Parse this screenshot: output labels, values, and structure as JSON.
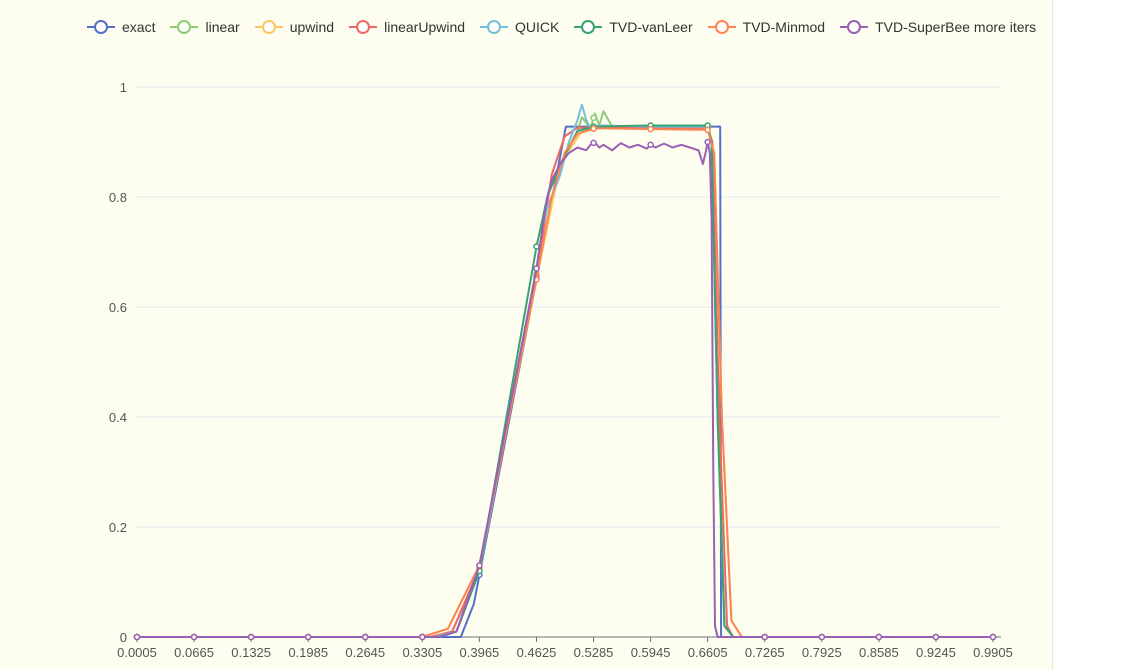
{
  "chart_data": {
    "type": "line",
    "title": "",
    "xlabel": "",
    "ylabel": "",
    "xlim": [
      0.0005,
      0.9905
    ],
    "ylim": [
      0,
      1
    ],
    "x_ticks": [
      "0.0005",
      "0.0665",
      "0.1325",
      "0.1985",
      "0.2645",
      "0.3305",
      "0.3965",
      "0.4625",
      "0.5285",
      "0.5945",
      "0.6605",
      "0.7265",
      "0.7925",
      "0.8585",
      "0.9245",
      "0.9905"
    ],
    "y_ticks": [
      "0",
      "0.2",
      "0.4",
      "0.6",
      "0.8",
      "1"
    ],
    "grid": true,
    "legend_position": "top",
    "colors": {
      "exact": "#5470c6",
      "linear": "#91cc75",
      "upwind": "#fac858",
      "linearUpwind": "#ee6666",
      "QUICK": "#73c0de",
      "TVD-vanLeer": "#3ba272",
      "TVD-Minmod": "#fc8452",
      "TVD-SuperBee more iters": "#9a60b4"
    },
    "series": [
      {
        "name": "exact",
        "points": [
          [
            0.0005,
            0
          ],
          [
            0.375,
            0
          ],
          [
            0.39,
            0.06
          ],
          [
            0.4965,
            0.928
          ],
          [
            0.675,
            0.928
          ],
          [
            0.676,
            0
          ],
          [
            0.9905,
            0
          ]
        ]
      },
      {
        "name": "linear",
        "points": [
          [
            0.0005,
            0
          ],
          [
            0.34,
            0
          ],
          [
            0.365,
            0.01
          ],
          [
            0.3965,
            0.12
          ],
          [
            0.4625,
            0.66
          ],
          [
            0.49,
            0.86
          ],
          [
            0.51,
            0.92
          ],
          [
            0.515,
            0.945
          ],
          [
            0.525,
            0.925
          ],
          [
            0.53,
            0.952
          ],
          [
            0.535,
            0.93
          ],
          [
            0.54,
            0.956
          ],
          [
            0.55,
            0.928
          ],
          [
            0.5945,
            0.928
          ],
          [
            0.6605,
            0.93
          ],
          [
            0.665,
            0.9
          ],
          [
            0.672,
            0.4
          ],
          [
            0.68,
            0.02
          ],
          [
            0.69,
            0
          ],
          [
            0.9905,
            0
          ]
        ]
      },
      {
        "name": "upwind",
        "points": [
          [
            0.0005,
            0
          ],
          [
            0.33,
            0
          ],
          [
            0.36,
            0.015
          ],
          [
            0.3965,
            0.13
          ],
          [
            0.4625,
            0.65
          ],
          [
            0.49,
            0.86
          ],
          [
            0.515,
            0.92
          ],
          [
            0.53,
            0.926
          ],
          [
            0.6605,
            0.925
          ],
          [
            0.668,
            0.88
          ],
          [
            0.677,
            0.4
          ],
          [
            0.688,
            0.03
          ],
          [
            0.7,
            0
          ],
          [
            0.9905,
            0
          ]
        ]
      },
      {
        "name": "linearUpwind",
        "points": [
          [
            0.0005,
            0
          ],
          [
            0.34,
            0
          ],
          [
            0.365,
            0.01
          ],
          [
            0.3965,
            0.125
          ],
          [
            0.4625,
            0.655
          ],
          [
            0.48,
            0.84
          ],
          [
            0.495,
            0.91
          ],
          [
            0.51,
            0.926
          ],
          [
            0.6605,
            0.926
          ],
          [
            0.666,
            0.9
          ],
          [
            0.674,
            0.4
          ],
          [
            0.683,
            0.02
          ],
          [
            0.69,
            0
          ],
          [
            0.9905,
            0
          ]
        ]
      },
      {
        "name": "QUICK",
        "points": [
          [
            0.0005,
            0
          ],
          [
            0.345,
            0
          ],
          [
            0.37,
            0.01
          ],
          [
            0.3965,
            0.12
          ],
          [
            0.4625,
            0.67
          ],
          [
            0.47,
            0.75
          ],
          [
            0.475,
            0.78
          ],
          [
            0.48,
            0.8
          ],
          [
            0.49,
            0.84
          ],
          [
            0.5,
            0.9
          ],
          [
            0.51,
            0.94
          ],
          [
            0.515,
            0.968
          ],
          [
            0.52,
            0.94
          ],
          [
            0.525,
            0.925
          ],
          [
            0.535,
            0.93
          ],
          [
            0.5945,
            0.928
          ],
          [
            0.6605,
            0.928
          ],
          [
            0.665,
            0.9
          ],
          [
            0.672,
            0.4
          ],
          [
            0.68,
            0.02
          ],
          [
            0.69,
            0
          ],
          [
            0.9905,
            0
          ]
        ]
      },
      {
        "name": "TVD-vanLeer",
        "points": [
          [
            0.0005,
            0
          ],
          [
            0.35,
            0
          ],
          [
            0.37,
            0.01
          ],
          [
            0.3965,
            0.12
          ],
          [
            0.4625,
            0.71
          ],
          [
            0.475,
            0.8
          ],
          [
            0.49,
            0.86
          ],
          [
            0.5,
            0.89
          ],
          [
            0.51,
            0.92
          ],
          [
            0.53,
            0.928
          ],
          [
            0.5945,
            0.93
          ],
          [
            0.6605,
            0.93
          ],
          [
            0.665,
            0.9
          ],
          [
            0.672,
            0.4
          ],
          [
            0.68,
            0.02
          ],
          [
            0.69,
            0
          ],
          [
            0.9905,
            0
          ]
        ]
      },
      {
        "name": "TVD-Minmod",
        "points": [
          [
            0.0005,
            0
          ],
          [
            0.33,
            0
          ],
          [
            0.36,
            0.015
          ],
          [
            0.3965,
            0.13
          ],
          [
            0.4625,
            0.65
          ],
          [
            0.48,
            0.8
          ],
          [
            0.495,
            0.88
          ],
          [
            0.51,
            0.915
          ],
          [
            0.53,
            0.925
          ],
          [
            0.6605,
            0.922
          ],
          [
            0.668,
            0.88
          ],
          [
            0.677,
            0.4
          ],
          [
            0.688,
            0.03
          ],
          [
            0.7,
            0
          ],
          [
            0.9905,
            0
          ]
        ]
      },
      {
        "name": "TVD-SuperBee more iters",
        "points": [
          [
            0.0005,
            0
          ],
          [
            0.35,
            0
          ],
          [
            0.37,
            0.01
          ],
          [
            0.3965,
            0.13
          ],
          [
            0.4625,
            0.67
          ],
          [
            0.47,
            0.75
          ],
          [
            0.475,
            0.8
          ],
          [
            0.48,
            0.83
          ],
          [
            0.49,
            0.86
          ],
          [
            0.5,
            0.88
          ],
          [
            0.51,
            0.89
          ],
          [
            0.52,
            0.885
          ],
          [
            0.525,
            0.895
          ],
          [
            0.53,
            0.9
          ],
          [
            0.535,
            0.89
          ],
          [
            0.54,
            0.895
          ],
          [
            0.55,
            0.885
          ],
          [
            0.56,
            0.898
          ],
          [
            0.57,
            0.89
          ],
          [
            0.58,
            0.895
          ],
          [
            0.59,
            0.888
          ],
          [
            0.5945,
            0.895
          ],
          [
            0.6,
            0.89
          ],
          [
            0.61,
            0.897
          ],
          [
            0.62,
            0.89
          ],
          [
            0.63,
            0.895
          ],
          [
            0.64,
            0.89
          ],
          [
            0.65,
            0.885
          ],
          [
            0.655,
            0.86
          ],
          [
            0.658,
            0.88
          ],
          [
            0.6605,
            0.9
          ],
          [
            0.663,
            0.88
          ],
          [
            0.665,
            0.76
          ],
          [
            0.667,
            0.3
          ],
          [
            0.669,
            0.02
          ],
          [
            0.672,
            0
          ],
          [
            0.9905,
            0
          ]
        ]
      }
    ]
  }
}
